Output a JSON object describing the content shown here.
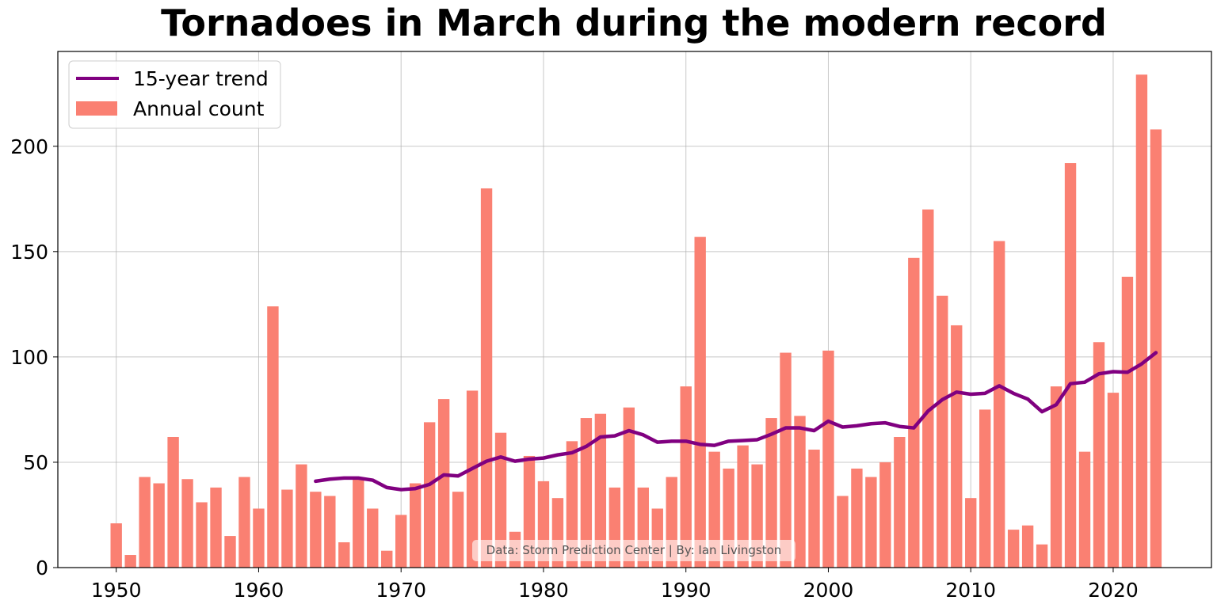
{
  "chart_data": {
    "type": "bar",
    "title": "Tornadoes in March during the modern record",
    "xlabel": "",
    "ylabel": "",
    "xlim": [
      1945.9,
      2026.9
    ],
    "ylim": [
      0,
      245
    ],
    "xticks": [
      1950,
      1960,
      1970,
      1980,
      1990,
      2000,
      2010,
      2020
    ],
    "yticks": [
      0,
      50,
      100,
      150,
      200
    ],
    "grid": true,
    "legend_position": "top-left",
    "colors": {
      "bars": "#fa8072",
      "trend": "#800080",
      "grid": "#b0b0b0"
    },
    "credit": "Data: Storm Prediction Center | By: Ian Livingston",
    "series": [
      {
        "name": "Annual count",
        "type": "bar",
        "x": [
          1950,
          1951,
          1952,
          1953,
          1954,
          1955,
          1956,
          1957,
          1958,
          1959,
          1960,
          1961,
          1962,
          1963,
          1964,
          1965,
          1966,
          1967,
          1968,
          1969,
          1970,
          1971,
          1972,
          1973,
          1974,
          1975,
          1976,
          1977,
          1978,
          1979,
          1980,
          1981,
          1982,
          1983,
          1984,
          1985,
          1986,
          1987,
          1988,
          1989,
          1990,
          1991,
          1992,
          1993,
          1994,
          1995,
          1996,
          1997,
          1998,
          1999,
          2000,
          2001,
          2002,
          2003,
          2004,
          2005,
          2006,
          2007,
          2008,
          2009,
          2010,
          2011,
          2012,
          2013,
          2014,
          2015,
          2016,
          2017,
          2018,
          2019,
          2020,
          2021,
          2022,
          2023
        ],
        "values": [
          21,
          6,
          43,
          40,
          62,
          42,
          31,
          38,
          15,
          43,
          28,
          124,
          37,
          49,
          36,
          34,
          12,
          42,
          28,
          8,
          25,
          40,
          69,
          80,
          36,
          84,
          180,
          64,
          17,
          53,
          41,
          33,
          60,
          71,
          73,
          38,
          76,
          38,
          28,
          43,
          86,
          157,
          55,
          47,
          58,
          49,
          71,
          102,
          72,
          56,
          103,
          34,
          47,
          43,
          50,
          62,
          147,
          170,
          129,
          115,
          33,
          75,
          155,
          18,
          20,
          11,
          86,
          192,
          55,
          107,
          83,
          138,
          234,
          208
        ]
      },
      {
        "name": "15-year trend",
        "type": "line",
        "x": [
          1964,
          1965,
          1966,
          1967,
          1968,
          1969,
          1970,
          1971,
          1972,
          1973,
          1974,
          1975,
          1976,
          1977,
          1978,
          1979,
          1980,
          1981,
          1982,
          1983,
          1984,
          1985,
          1986,
          1987,
          1988,
          1989,
          1990,
          1991,
          1992,
          1993,
          1994,
          1995,
          1996,
          1997,
          1998,
          1999,
          2000,
          2001,
          2002,
          2003,
          2004,
          2005,
          2006,
          2007,
          2008,
          2009,
          2010,
          2011,
          2012,
          2013,
          2014,
          2015,
          2016,
          2017,
          2018,
          2019,
          2020,
          2021,
          2022,
          2023
        ],
        "values": [
          41,
          42,
          42.5,
          42.5,
          41.5,
          38,
          37,
          37.5,
          39.5,
          44,
          43.5,
          47,
          50.5,
          52.5,
          50.5,
          51.5,
          52,
          53.5,
          54.5,
          57.5,
          62,
          62.5,
          65,
          63,
          59.5,
          60,
          60,
          58.5,
          58,
          60,
          60.3,
          60.7,
          63.3,
          66.3,
          66.3,
          65,
          69.5,
          66.7,
          67.3,
          68.3,
          68.7,
          67,
          66.3,
          74.3,
          79.7,
          83.3,
          82.3,
          82.7,
          86.3,
          82.7,
          80,
          74,
          77.3,
          87.3,
          88,
          92,
          93,
          92.7,
          96.7,
          102
        ]
      }
    ]
  }
}
